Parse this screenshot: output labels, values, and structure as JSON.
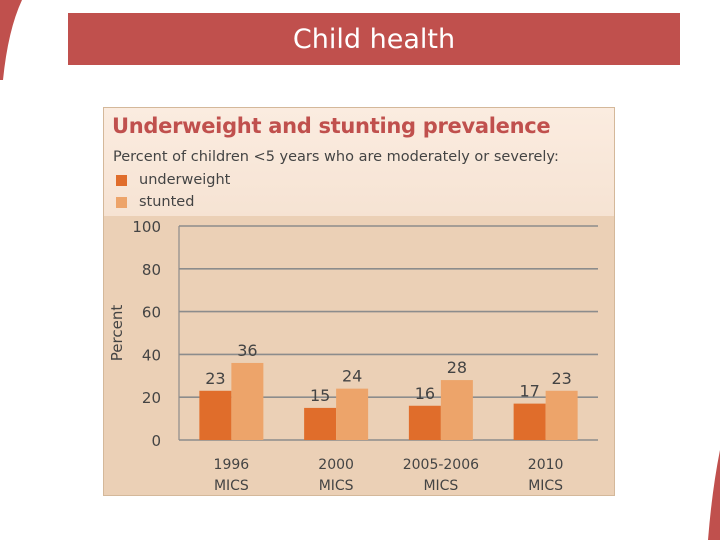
{
  "slide_title": "Child health",
  "colors": {
    "title_bar": "#c0504d",
    "underweight": "#e06d2b",
    "stunted": "#eda46a",
    "gridline": "#8c8c8c",
    "panel": "#ebd0b6"
  },
  "chart_data": {
    "type": "bar",
    "title": "Underweight and stunting prevalence",
    "subtitle": "Percent of children <5 years who are moderately or severely:",
    "ylabel": "Percent",
    "ylim": [
      0,
      100
    ],
    "yticks": [
      0,
      20,
      40,
      60,
      80,
      100
    ],
    "grid": true,
    "legend_position": "top-left",
    "categories": [
      [
        "1996",
        "MICS"
      ],
      [
        "2000",
        "MICS"
      ],
      [
        "2005-2006",
        "MICS"
      ],
      [
        "2010",
        "MICS"
      ]
    ],
    "series": [
      {
        "name": "underweight",
        "values": [
          23,
          15,
          16,
          17
        ]
      },
      {
        "name": "stunted",
        "values": [
          36,
          24,
          28,
          23
        ]
      }
    ]
  }
}
